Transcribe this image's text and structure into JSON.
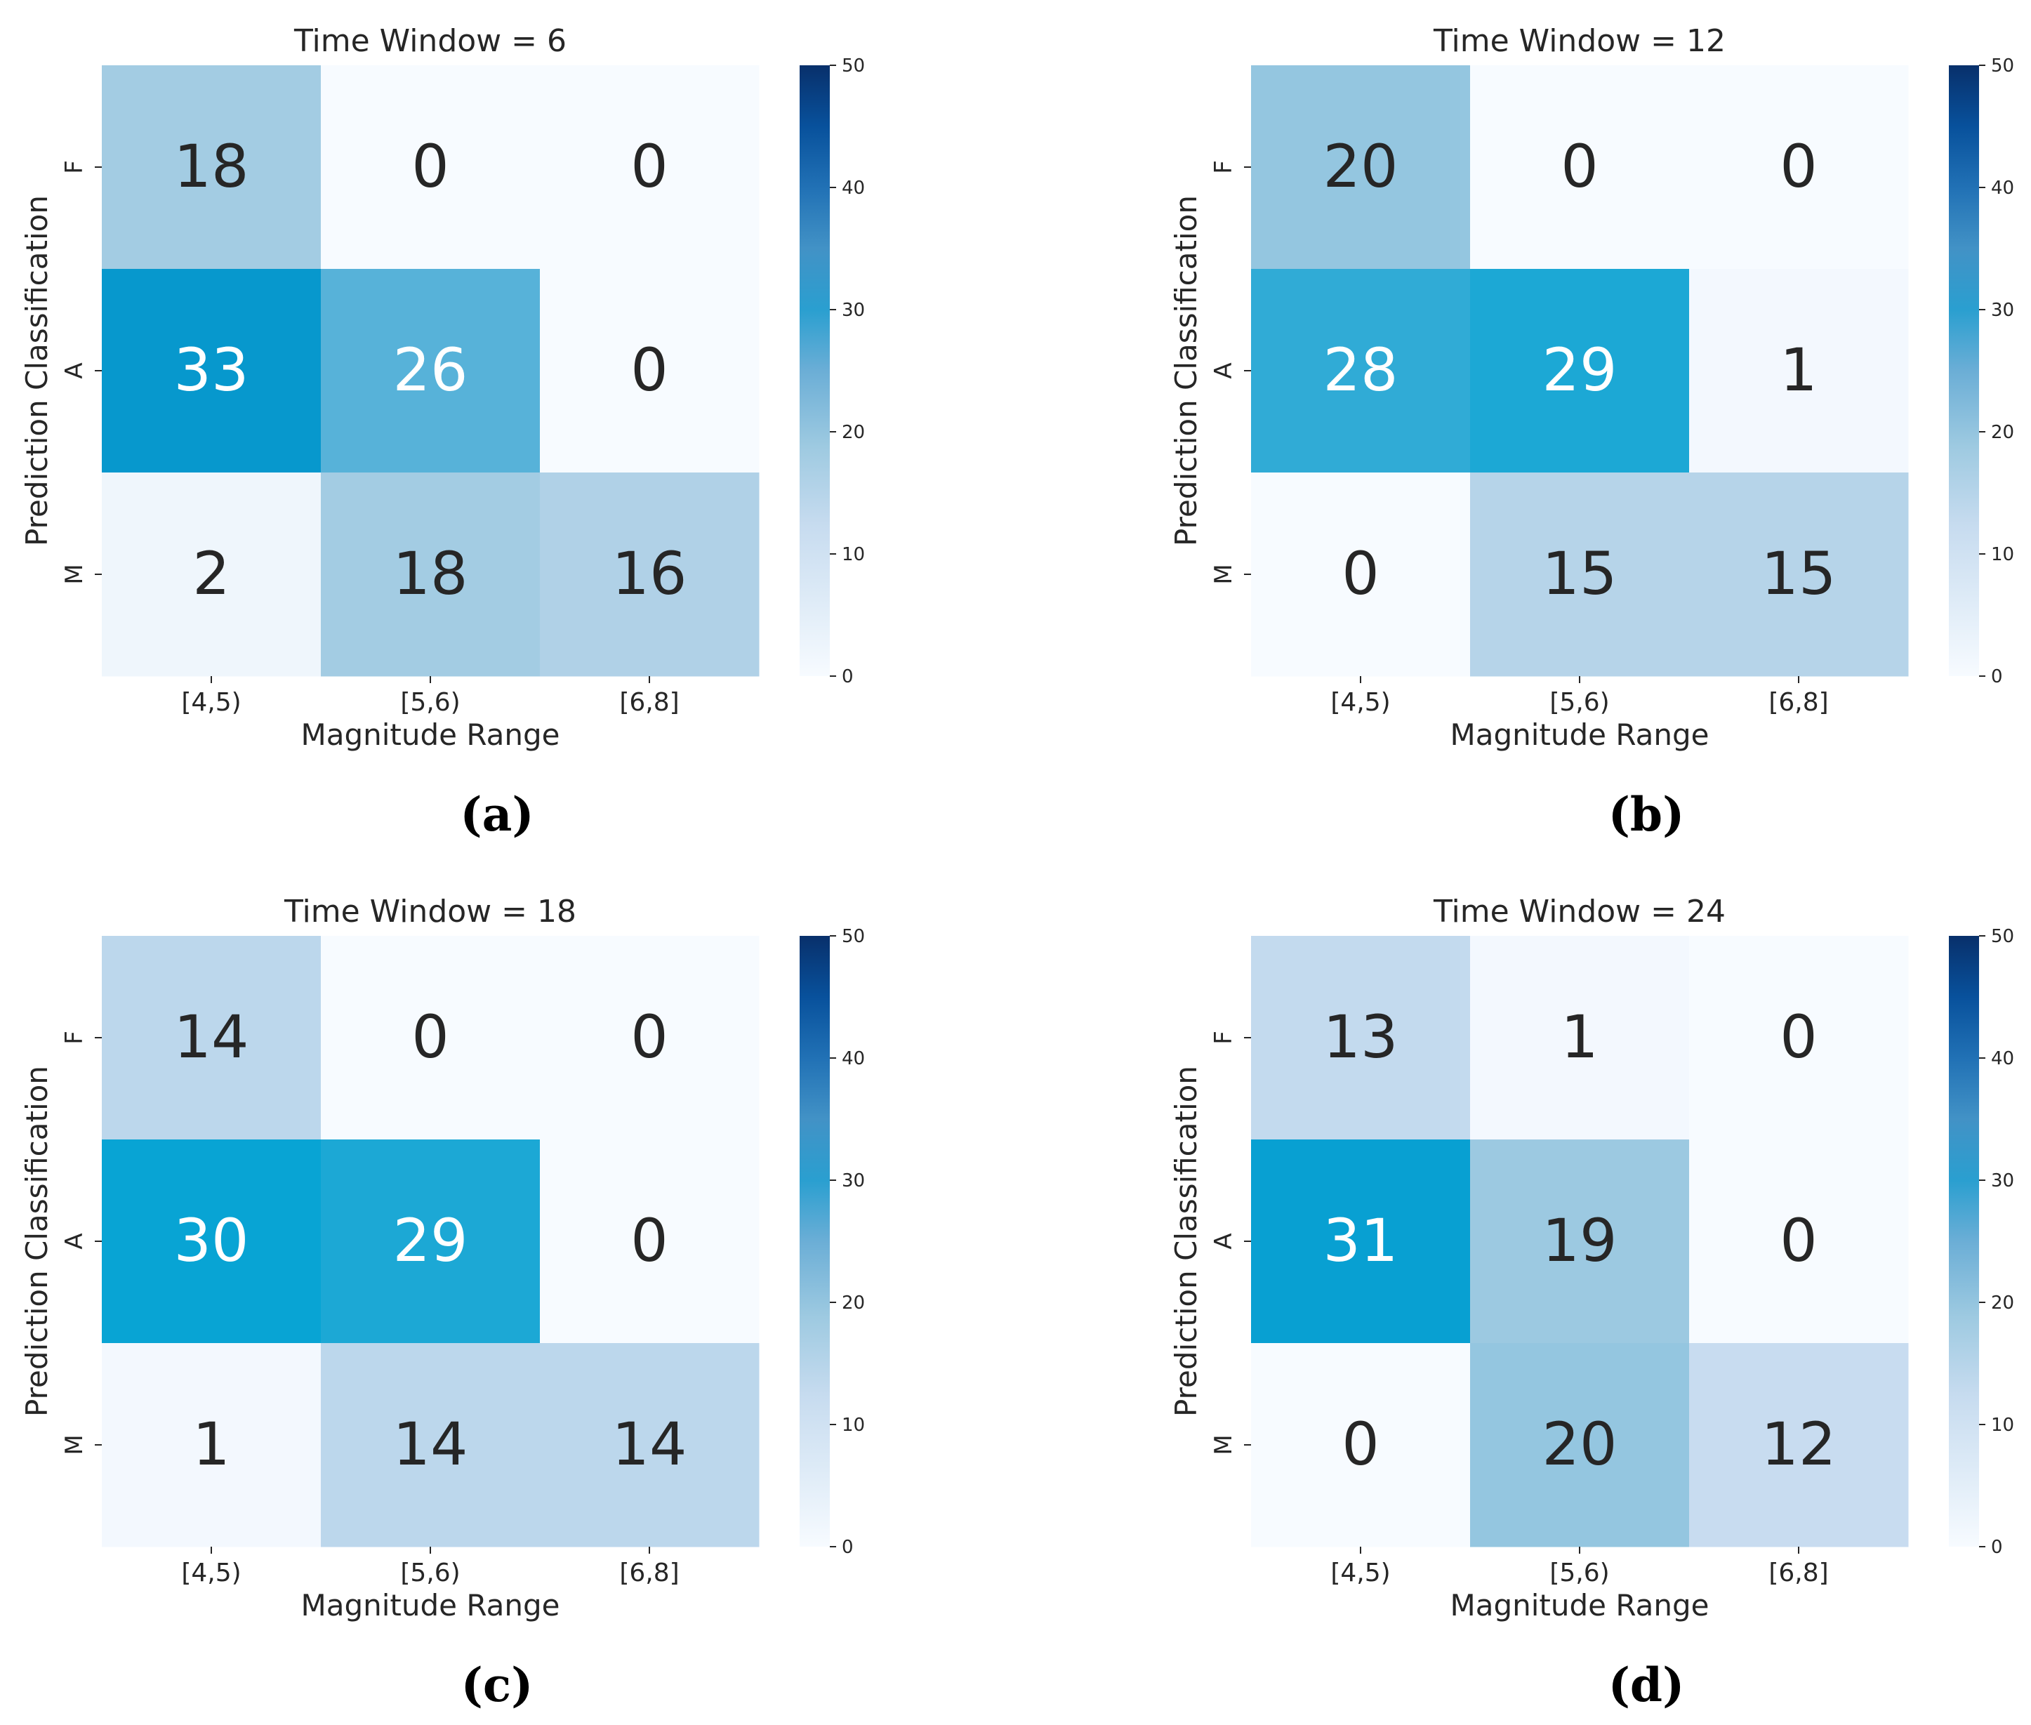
{
  "chart_data": [
    {
      "type": "heatmap",
      "panel_label": "(a)",
      "title": "Time Window = 6",
      "xlabel": "Magnitude Range",
      "ylabel": "Prediction Classification",
      "x_categories": [
        "[4,5)",
        "[5,6)",
        "[6,8]"
      ],
      "y_categories": [
        "F",
        "A",
        "M"
      ],
      "values": [
        [
          18,
          0,
          0
        ],
        [
          33,
          26,
          0
        ],
        [
          2,
          18,
          16
        ]
      ],
      "colorbar": {
        "min": 0,
        "max": 50,
        "ticks": [
          "0",
          "10",
          "20",
          "30",
          "40",
          "50"
        ]
      }
    },
    {
      "type": "heatmap",
      "panel_label": "(b)",
      "title": "Time Window = 12",
      "xlabel": "Magnitude Range",
      "ylabel": "Prediction Classification",
      "x_categories": [
        "[4,5)",
        "[5,6)",
        "[6,8]"
      ],
      "y_categories": [
        "F",
        "A",
        "M"
      ],
      "values": [
        [
          20,
          0,
          0
        ],
        [
          28,
          29,
          1
        ],
        [
          0,
          15,
          15
        ]
      ],
      "colorbar": {
        "min": 0,
        "max": 50,
        "ticks": [
          "0",
          "10",
          "20",
          "30",
          "40",
          "50"
        ]
      }
    },
    {
      "type": "heatmap",
      "panel_label": "(c)",
      "title": "Time Window = 18",
      "xlabel": "Magnitude Range",
      "ylabel": "Prediction Classification",
      "x_categories": [
        "[4,5)",
        "[5,6)",
        "[6,8]"
      ],
      "y_categories": [
        "F",
        "A",
        "M"
      ],
      "values": [
        [
          14,
          0,
          0
        ],
        [
          30,
          29,
          0
        ],
        [
          1,
          14,
          14
        ]
      ],
      "colorbar": {
        "min": 0,
        "max": 50,
        "ticks": [
          "0",
          "10",
          "20",
          "30",
          "40",
          "50"
        ]
      }
    },
    {
      "type": "heatmap",
      "panel_label": "(d)",
      "title": "Time Window = 24",
      "xlabel": "Magnitude Range",
      "ylabel": "Prediction Classification",
      "x_categories": [
        "[4,5)",
        "[5,6)",
        "[6,8]"
      ],
      "y_categories": [
        "F",
        "A",
        "M"
      ],
      "values": [
        [
          13,
          1,
          0
        ],
        [
          31,
          19,
          0
        ],
        [
          0,
          20,
          12
        ]
      ],
      "colorbar": {
        "min": 0,
        "max": 50,
        "ticks": [
          "0",
          "10",
          "20",
          "30",
          "40",
          "50"
        ]
      }
    }
  ]
}
